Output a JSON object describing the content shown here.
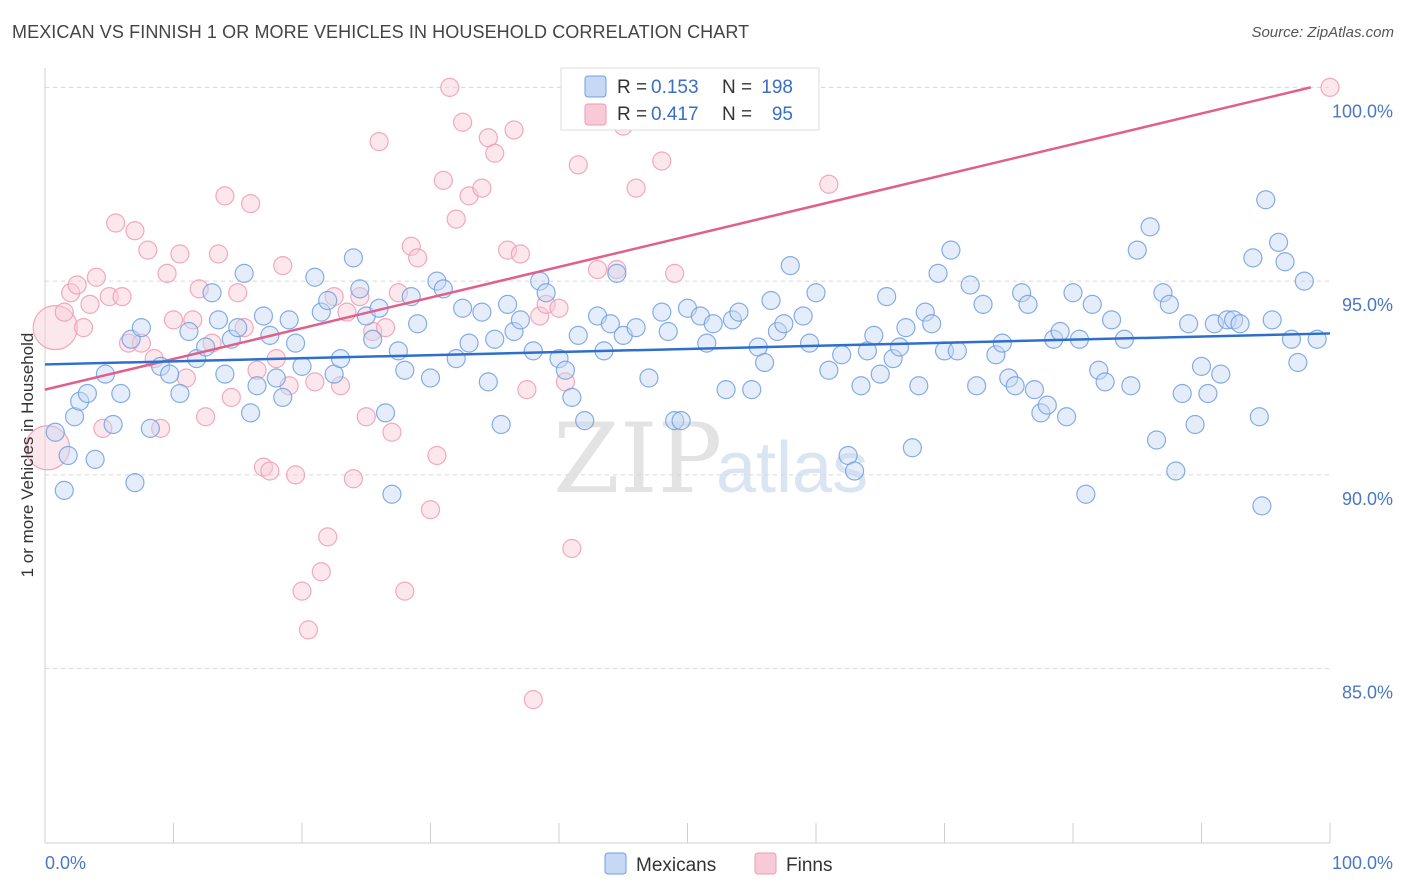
{
  "title": "MEXICAN VS FINNISH 1 OR MORE VEHICLES IN HOUSEHOLD CORRELATION CHART",
  "source": "Source: ZipAtlas.com",
  "watermark": {
    "zip": "ZIP",
    "atlas": "atlas"
  },
  "colors": {
    "mexicans": "#6f9fe0",
    "finns": "#ef9ab4",
    "mexicans_line": "#2f6fcc",
    "finns_line": "#e0608a",
    "axis_text": "#4a78c2"
  },
  "chart_data": {
    "type": "scatter",
    "xlabel": "",
    "ylabel": "1 or more Vehicles in Household",
    "xlim": [
      0,
      100
    ],
    "ylim": [
      80.5,
      100.5
    ],
    "x_tick_labels": [
      "0.0%",
      "100.0%"
    ],
    "y_ticks": [
      85,
      90,
      95,
      100
    ],
    "y_tick_labels": [
      "85.0%",
      "90.0%",
      "95.0%",
      "100.0%"
    ],
    "grid": true,
    "legend_placement": "top-center",
    "legend": [
      {
        "r_label": "R =",
        "r": "0.153",
        "n_label": "N =",
        "n": "198"
      },
      {
        "r_label": "R =",
        "r": "0.417",
        "n_label": "N =",
        "n": "95"
      }
    ],
    "series": [
      {
        "name": "Mexicans",
        "trend": {
          "x": [
            0,
            100
          ],
          "y": [
            92.85,
            93.65
          ]
        },
        "points": [
          [
            0.8,
            91.1
          ],
          [
            1.5,
            89.6
          ],
          [
            1.8,
            90.5
          ],
          [
            2.3,
            91.5
          ],
          [
            2.7,
            91.9
          ],
          [
            3.3,
            92.1
          ],
          [
            3.9,
            90.4
          ],
          [
            4.7,
            92.6
          ],
          [
            5.3,
            91.3
          ],
          [
            5.9,
            92.1
          ],
          [
            6.7,
            93.5
          ],
          [
            7.0,
            89.8
          ],
          [
            7.5,
            93.8
          ],
          [
            8.2,
            91.2
          ],
          [
            9.0,
            92.8
          ],
          [
            9.7,
            92.6
          ],
          [
            10.5,
            92.1
          ],
          [
            11.2,
            93.7
          ],
          [
            11.8,
            93.0
          ],
          [
            12.5,
            93.3
          ],
          [
            13.0,
            94.7
          ],
          [
            13.5,
            94.0
          ],
          [
            14.0,
            92.6
          ],
          [
            14.5,
            93.5
          ],
          [
            15.0,
            93.8
          ],
          [
            15.5,
            95.2
          ],
          [
            16.0,
            91.6
          ],
          [
            16.5,
            92.3
          ],
          [
            17.0,
            94.1
          ],
          [
            17.5,
            93.6
          ],
          [
            18.0,
            92.5
          ],
          [
            18.5,
            92.0
          ],
          [
            19.0,
            94.0
          ],
          [
            19.5,
            93.4
          ],
          [
            20.0,
            92.8
          ],
          [
            21.0,
            95.1
          ],
          [
            21.5,
            94.2
          ],
          [
            22.0,
            94.5
          ],
          [
            22.5,
            92.6
          ],
          [
            23.0,
            93.0
          ],
          [
            24.0,
            95.6
          ],
          [
            24.5,
            94.8
          ],
          [
            25.0,
            94.1
          ],
          [
            25.5,
            93.5
          ],
          [
            26.0,
            94.3
          ],
          [
            26.5,
            91.6
          ],
          [
            27.0,
            89.5
          ],
          [
            27.5,
            93.2
          ],
          [
            28.0,
            92.7
          ],
          [
            28.5,
            94.6
          ],
          [
            29.0,
            93.9
          ],
          [
            30.0,
            92.5
          ],
          [
            30.5,
            95.0
          ],
          [
            31.0,
            94.8
          ],
          [
            32.0,
            93.0
          ],
          [
            32.5,
            94.3
          ],
          [
            33.0,
            93.4
          ],
          [
            34.0,
            94.2
          ],
          [
            34.5,
            92.4
          ],
          [
            35.0,
            93.5
          ],
          [
            35.5,
            91.3
          ],
          [
            36.0,
            94.4
          ],
          [
            36.5,
            93.7
          ],
          [
            37.0,
            94.0
          ],
          [
            38.0,
            93.2
          ],
          [
            38.5,
            95.0
          ],
          [
            39.0,
            94.7
          ],
          [
            40.0,
            93.0
          ],
          [
            40.5,
            92.7
          ],
          [
            41.0,
            92.0
          ],
          [
            41.5,
            93.6
          ],
          [
            42.0,
            91.4
          ],
          [
            43.0,
            94.1
          ],
          [
            43.5,
            93.2
          ],
          [
            44.0,
            93.9
          ],
          [
            44.5,
            95.2
          ],
          [
            45.0,
            93.6
          ],
          [
            46.0,
            93.8
          ],
          [
            47.0,
            92.5
          ],
          [
            48.0,
            94.2
          ],
          [
            48.5,
            93.7
          ],
          [
            49.0,
            91.4
          ],
          [
            49.5,
            91.4
          ],
          [
            50.0,
            94.3
          ],
          [
            51.0,
            94.1
          ],
          [
            51.5,
            93.4
          ],
          [
            52.0,
            93.9
          ],
          [
            53.0,
            92.2
          ],
          [
            53.5,
            94.0
          ],
          [
            54.0,
            94.2
          ],
          [
            55.0,
            92.2
          ],
          [
            55.5,
            93.3
          ],
          [
            56.0,
            92.9
          ],
          [
            56.5,
            94.5
          ],
          [
            57.0,
            93.7
          ],
          [
            57.5,
            93.9
          ],
          [
            58.0,
            95.4
          ],
          [
            59.0,
            94.1
          ],
          [
            59.5,
            93.4
          ],
          [
            60.0,
            94.7
          ],
          [
            61.0,
            92.7
          ],
          [
            62.0,
            93.1
          ],
          [
            62.5,
            90.5
          ],
          [
            63.0,
            90.1
          ],
          [
            63.5,
            92.3
          ],
          [
            64.0,
            93.2
          ],
          [
            64.5,
            93.6
          ],
          [
            65.0,
            92.6
          ],
          [
            65.5,
            94.6
          ],
          [
            66.0,
            93.0
          ],
          [
            66.5,
            93.3
          ],
          [
            67.0,
            93.8
          ],
          [
            67.5,
            90.7
          ],
          [
            68.0,
            92.3
          ],
          [
            68.5,
            94.2
          ],
          [
            69.0,
            93.9
          ],
          [
            69.5,
            95.2
          ],
          [
            70.0,
            93.2
          ],
          [
            70.5,
            95.8
          ],
          [
            71.0,
            93.2
          ],
          [
            72.0,
            94.9
          ],
          [
            72.5,
            92.3
          ],
          [
            73.0,
            94.4
          ],
          [
            74.0,
            93.1
          ],
          [
            74.5,
            93.4
          ],
          [
            75.0,
            92.5
          ],
          [
            75.5,
            92.3
          ],
          [
            76.0,
            94.7
          ],
          [
            76.5,
            94.4
          ],
          [
            77.0,
            92.2
          ],
          [
            77.5,
            91.6
          ],
          [
            78.0,
            91.8
          ],
          [
            78.5,
            93.5
          ],
          [
            79.0,
            93.7
          ],
          [
            79.5,
            91.5
          ],
          [
            80.0,
            94.7
          ],
          [
            80.5,
            93.5
          ],
          [
            81.0,
            89.5
          ],
          [
            81.5,
            94.4
          ],
          [
            82.0,
            92.7
          ],
          [
            82.5,
            92.4
          ],
          [
            83.0,
            94.0
          ],
          [
            84.0,
            93.5
          ],
          [
            84.5,
            92.3
          ],
          [
            85.0,
            95.8
          ],
          [
            86.0,
            96.4
          ],
          [
            86.5,
            90.9
          ],
          [
            87.0,
            94.7
          ],
          [
            87.5,
            94.4
          ],
          [
            88.0,
            90.1
          ],
          [
            88.5,
            92.1
          ],
          [
            89.0,
            93.9
          ],
          [
            89.5,
            91.3
          ],
          [
            90.0,
            92.8
          ],
          [
            90.5,
            92.1
          ],
          [
            91.0,
            93.9
          ],
          [
            91.5,
            92.6
          ],
          [
            92.0,
            94.0
          ],
          [
            92.5,
            94.0
          ],
          [
            93.0,
            93.9
          ],
          [
            94.0,
            95.6
          ],
          [
            94.5,
            91.5
          ],
          [
            94.7,
            89.2
          ],
          [
            95.0,
            97.1
          ],
          [
            95.5,
            94.0
          ],
          [
            96.0,
            96.0
          ],
          [
            96.5,
            95.5
          ],
          [
            97.0,
            93.5
          ],
          [
            97.5,
            92.9
          ],
          [
            98.0,
            95.0
          ],
          [
            99.0,
            93.5
          ]
        ]
      },
      {
        "name": "Finns",
        "trend": {
          "x": [
            0,
            98.5
          ],
          "y": [
            92.2,
            100.0
          ]
        },
        "points": [
          [
            0.2,
            90.7
          ],
          [
            0.8,
            93.8
          ],
          [
            1.5,
            94.2
          ],
          [
            2.0,
            94.7
          ],
          [
            2.5,
            94.9
          ],
          [
            3.0,
            93.8
          ],
          [
            3.5,
            94.4
          ],
          [
            4.0,
            95.1
          ],
          [
            4.5,
            91.2
          ],
          [
            5.0,
            94.6
          ],
          [
            5.5,
            96.5
          ],
          [
            6.0,
            94.6
          ],
          [
            6.5,
            93.4
          ],
          [
            7.0,
            96.3
          ],
          [
            7.5,
            93.4
          ],
          [
            8.0,
            95.8
          ],
          [
            8.5,
            93.0
          ],
          [
            9.0,
            91.2
          ],
          [
            9.5,
            95.2
          ],
          [
            10.0,
            94.0
          ],
          [
            10.5,
            95.7
          ],
          [
            11.0,
            92.5
          ],
          [
            11.5,
            94.0
          ],
          [
            12.0,
            94.8
          ],
          [
            12.5,
            91.5
          ],
          [
            13.0,
            93.4
          ],
          [
            13.5,
            95.7
          ],
          [
            14.0,
            97.2
          ],
          [
            14.5,
            92.0
          ],
          [
            15.0,
            94.7
          ],
          [
            15.5,
            93.8
          ],
          [
            16.0,
            97.0
          ],
          [
            16.5,
            92.7
          ],
          [
            17.0,
            90.2
          ],
          [
            17.5,
            90.1
          ],
          [
            18.0,
            93.0
          ],
          [
            18.5,
            95.4
          ],
          [
            19.0,
            92.3
          ],
          [
            19.5,
            90.0
          ],
          [
            20.0,
            87.0
          ],
          [
            20.5,
            86.0
          ],
          [
            21.0,
            92.4
          ],
          [
            21.5,
            87.5
          ],
          [
            22.0,
            88.4
          ],
          [
            22.5,
            94.6
          ],
          [
            23.0,
            92.3
          ],
          [
            23.5,
            94.2
          ],
          [
            24.0,
            89.9
          ],
          [
            24.5,
            94.6
          ],
          [
            25.0,
            91.5
          ],
          [
            25.5,
            93.7
          ],
          [
            26.0,
            98.6
          ],
          [
            26.5,
            93.8
          ],
          [
            27.0,
            91.1
          ],
          [
            27.5,
            94.7
          ],
          [
            28.0,
            87.0
          ],
          [
            28.5,
            95.9
          ],
          [
            29.0,
            95.6
          ],
          [
            30.0,
            89.1
          ],
          [
            30.5,
            90.5
          ],
          [
            31.0,
            97.6
          ],
          [
            31.5,
            100.0
          ],
          [
            32.0,
            96.6
          ],
          [
            32.5,
            99.1
          ],
          [
            33.0,
            97.2
          ],
          [
            34.0,
            97.4
          ],
          [
            34.5,
            98.7
          ],
          [
            35.0,
            98.3
          ],
          [
            36.0,
            95.8
          ],
          [
            36.5,
            98.9
          ],
          [
            37.0,
            95.7
          ],
          [
            37.5,
            92.2
          ],
          [
            38.0,
            84.2
          ],
          [
            38.5,
            94.1
          ],
          [
            39.0,
            94.4
          ],
          [
            40.0,
            94.3
          ],
          [
            40.5,
            92.4
          ],
          [
            41.0,
            88.1
          ],
          [
            41.5,
            98.0
          ],
          [
            42.0,
            100.0
          ],
          [
            43.0,
            95.3
          ],
          [
            44.0,
            100.0
          ],
          [
            44.5,
            95.3
          ],
          [
            45.0,
            99.0
          ],
          [
            46.0,
            97.4
          ],
          [
            47.0,
            100.0
          ],
          [
            48.0,
            98.1
          ],
          [
            48.5,
            100.0
          ],
          [
            49.0,
            95.2
          ],
          [
            50.0,
            100.0
          ],
          [
            52.0,
            100.0
          ],
          [
            55.0,
            100.0
          ],
          [
            57.0,
            100.0
          ],
          [
            61.0,
            97.5
          ],
          [
            100.0,
            100.0
          ]
        ]
      }
    ]
  },
  "legend_bottom": [
    "Mexicans",
    "Finns"
  ]
}
